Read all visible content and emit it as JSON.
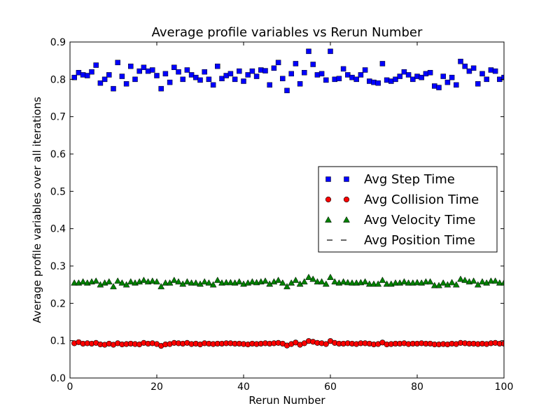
{
  "chart_data": {
    "type": "scatter",
    "title": "Average profile variables vs Rerun Number",
    "xlabel": "Rerun Number",
    "ylabel": "Average profile variables over all iterations",
    "xlim": [
      0,
      100
    ],
    "ylim": [
      0.0,
      0.9
    ],
    "xticks": [
      "0",
      "20",
      "40",
      "60",
      "80",
      "100"
    ],
    "yticks": [
      "0.0",
      "0.1",
      "0.2",
      "0.3",
      "0.4",
      "0.5",
      "0.6",
      "0.7",
      "0.8",
      "0.9"
    ],
    "grid": false,
    "legend_position": "center-right",
    "x": [
      1,
      2,
      3,
      4,
      5,
      6,
      7,
      8,
      9,
      10,
      11,
      12,
      13,
      14,
      15,
      16,
      17,
      18,
      19,
      20,
      21,
      22,
      23,
      24,
      25,
      26,
      27,
      28,
      29,
      30,
      31,
      32,
      33,
      34,
      35,
      36,
      37,
      38,
      39,
      40,
      41,
      42,
      43,
      44,
      45,
      46,
      47,
      48,
      49,
      50,
      51,
      52,
      53,
      54,
      55,
      56,
      57,
      58,
      59,
      60,
      61,
      62,
      63,
      64,
      65,
      66,
      67,
      68,
      69,
      70,
      71,
      72,
      73,
      74,
      75,
      76,
      77,
      78,
      79,
      80,
      81,
      82,
      83,
      84,
      85,
      86,
      87,
      88,
      89,
      90,
      91,
      92,
      93,
      94,
      95,
      96,
      97,
      98,
      99,
      100
    ],
    "series": [
      {
        "name": "Avg Step Time",
        "marker": "square",
        "color": "#0000ff",
        "values": [
          0.805,
          0.818,
          0.812,
          0.81,
          0.82,
          0.838,
          0.79,
          0.8,
          0.812,
          0.775,
          0.845,
          0.808,
          0.788,
          0.835,
          0.8,
          0.822,
          0.832,
          0.822,
          0.825,
          0.81,
          0.775,
          0.815,
          0.792,
          0.832,
          0.82,
          0.8,
          0.825,
          0.812,
          0.805,
          0.798,
          0.82,
          0.8,
          0.785,
          0.835,
          0.802,
          0.81,
          0.815,
          0.8,
          0.822,
          0.795,
          0.812,
          0.822,
          0.808,
          0.825,
          0.823,
          0.785,
          0.83,
          0.845,
          0.802,
          0.77,
          0.815,
          0.842,
          0.788,
          0.818,
          0.875,
          0.84,
          0.812,
          0.815,
          0.798,
          0.875,
          0.8,
          0.802,
          0.828,
          0.812,
          0.805,
          0.8,
          0.812,
          0.825,
          0.795,
          0.792,
          0.79,
          0.842,
          0.798,
          0.795,
          0.8,
          0.808,
          0.82,
          0.812,
          0.8,
          0.808,
          0.805,
          0.815,
          0.818,
          0.782,
          0.778,
          0.808,
          0.792,
          0.805,
          0.785,
          0.848,
          0.835,
          0.822,
          0.83,
          0.788,
          0.815,
          0.8,
          0.825,
          0.822,
          0.8,
          0.805
        ]
      },
      {
        "name": "Avg Collision Time",
        "marker": "circle",
        "color": "#ff0000",
        "values": [
          0.093,
          0.096,
          0.092,
          0.093,
          0.092,
          0.094,
          0.09,
          0.089,
          0.092,
          0.089,
          0.093,
          0.09,
          0.091,
          0.092,
          0.091,
          0.09,
          0.094,
          0.092,
          0.093,
          0.091,
          0.086,
          0.09,
          0.091,
          0.094,
          0.093,
          0.092,
          0.094,
          0.091,
          0.092,
          0.09,
          0.093,
          0.092,
          0.091,
          0.092,
          0.092,
          0.093,
          0.093,
          0.092,
          0.092,
          0.091,
          0.09,
          0.092,
          0.091,
          0.092,
          0.093,
          0.092,
          0.093,
          0.094,
          0.092,
          0.087,
          0.091,
          0.095,
          0.089,
          0.093,
          0.099,
          0.097,
          0.094,
          0.093,
          0.091,
          0.099,
          0.094,
          0.092,
          0.092,
          0.093,
          0.092,
          0.091,
          0.093,
          0.093,
          0.092,
          0.09,
          0.091,
          0.095,
          0.09,
          0.091,
          0.092,
          0.092,
          0.093,
          0.091,
          0.092,
          0.092,
          0.093,
          0.092,
          0.092,
          0.09,
          0.09,
          0.091,
          0.09,
          0.092,
          0.091,
          0.094,
          0.093,
          0.092,
          0.092,
          0.091,
          0.092,
          0.091,
          0.093,
          0.094,
          0.092,
          0.092
        ]
      },
      {
        "name": "Avg Velocity Time",
        "marker": "triangle",
        "color": "#008000",
        "values": [
          0.255,
          0.255,
          0.258,
          0.255,
          0.258,
          0.26,
          0.25,
          0.255,
          0.258,
          0.245,
          0.26,
          0.255,
          0.25,
          0.258,
          0.255,
          0.258,
          0.262,
          0.258,
          0.26,
          0.258,
          0.245,
          0.255,
          0.255,
          0.262,
          0.258,
          0.252,
          0.258,
          0.255,
          0.255,
          0.252,
          0.258,
          0.255,
          0.25,
          0.262,
          0.255,
          0.256,
          0.256,
          0.255,
          0.258,
          0.252,
          0.255,
          0.258,
          0.256,
          0.258,
          0.26,
          0.252,
          0.258,
          0.262,
          0.255,
          0.245,
          0.255,
          0.262,
          0.252,
          0.258,
          0.27,
          0.265,
          0.258,
          0.258,
          0.252,
          0.27,
          0.258,
          0.255,
          0.258,
          0.256,
          0.255,
          0.255,
          0.256,
          0.258,
          0.252,
          0.252,
          0.252,
          0.262,
          0.252,
          0.252,
          0.255,
          0.255,
          0.258,
          0.255,
          0.255,
          0.256,
          0.255,
          0.258,
          0.258,
          0.248,
          0.248,
          0.255,
          0.25,
          0.256,
          0.25,
          0.265,
          0.262,
          0.258,
          0.26,
          0.25,
          0.258,
          0.255,
          0.26,
          0.26,
          0.255,
          0.255
        ]
      },
      {
        "name": "Avg Position Time",
        "marker": "dash",
        "color": "#000000",
        "values": [
          0.093,
          0.095,
          0.092,
          0.093,
          0.092,
          0.094,
          0.091,
          0.09,
          0.092,
          0.09,
          0.093,
          0.091,
          0.091,
          0.092,
          0.092,
          0.091,
          0.094,
          0.092,
          0.093,
          0.092,
          0.088,
          0.091,
          0.091,
          0.094,
          0.093,
          0.092,
          0.094,
          0.092,
          0.092,
          0.091,
          0.093,
          0.092,
          0.091,
          0.092,
          0.092,
          0.093,
          0.093,
          0.092,
          0.092,
          0.091,
          0.091,
          0.092,
          0.092,
          0.092,
          0.093,
          0.092,
          0.093,
          0.094,
          0.092,
          0.089,
          0.092,
          0.095,
          0.09,
          0.093,
          0.098,
          0.096,
          0.094,
          0.093,
          0.092,
          0.098,
          0.094,
          0.092,
          0.092,
          0.093,
          0.092,
          0.092,
          0.093,
          0.093,
          0.092,
          0.091,
          0.092,
          0.095,
          0.091,
          0.092,
          0.092,
          0.092,
          0.093,
          0.092,
          0.092,
          0.092,
          0.093,
          0.092,
          0.092,
          0.091,
          0.091,
          0.092,
          0.091,
          0.092,
          0.092,
          0.094,
          0.093,
          0.092,
          0.092,
          0.092,
          0.092,
          0.092,
          0.093,
          0.094,
          0.092,
          0.092
        ]
      }
    ]
  }
}
